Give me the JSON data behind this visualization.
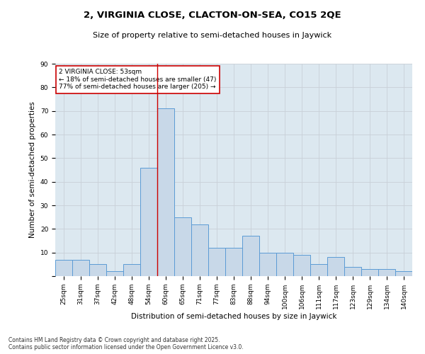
{
  "title_line1": "2, VIRGINIA CLOSE, CLACTON-ON-SEA, CO15 2QE",
  "title_line2": "Size of property relative to semi-detached houses in Jaywick",
  "xlabel": "Distribution of semi-detached houses by size in Jaywick",
  "ylabel": "Number of semi-detached properties",
  "categories": [
    "25sqm",
    "31sqm",
    "37sqm",
    "42sqm",
    "48sqm",
    "54sqm",
    "60sqm",
    "65sqm",
    "71sqm",
    "77sqm",
    "83sqm",
    "88sqm",
    "94sqm",
    "100sqm",
    "106sqm",
    "111sqm",
    "117sqm",
    "123sqm",
    "129sqm",
    "134sqm",
    "140sqm"
  ],
  "values": [
    7,
    7,
    5,
    2,
    5,
    46,
    71,
    25,
    22,
    12,
    12,
    17,
    10,
    10,
    9,
    5,
    8,
    4,
    3,
    3,
    2
  ],
  "bar_color": "#c8d8e8",
  "bar_edge_color": "#5b9bd5",
  "property_line_index": 5.5,
  "annotation_text": "2 VIRGINIA CLOSE: 53sqm\n← 18% of semi-detached houses are smaller (47)\n77% of semi-detached houses are larger (205) →",
  "annotation_box_color": "#ffffff",
  "annotation_box_edge_color": "#cc0000",
  "annotation_text_color": "#000000",
  "vline_color": "#cc0000",
  "ylim": [
    0,
    90
  ],
  "yticks": [
    0,
    10,
    20,
    30,
    40,
    50,
    60,
    70,
    80,
    90
  ],
  "grid_color": "#c8d0d8",
  "background_color": "#dce8f0",
  "footer_line1": "Contains HM Land Registry data © Crown copyright and database right 2025.",
  "footer_line2": "Contains public sector information licensed under the Open Government Licence v3.0.",
  "title_fontsize": 9.5,
  "subtitle_fontsize": 8,
  "axis_label_fontsize": 7.5,
  "tick_fontsize": 6.5,
  "annotation_fontsize": 6.5,
  "footer_fontsize": 5.5
}
